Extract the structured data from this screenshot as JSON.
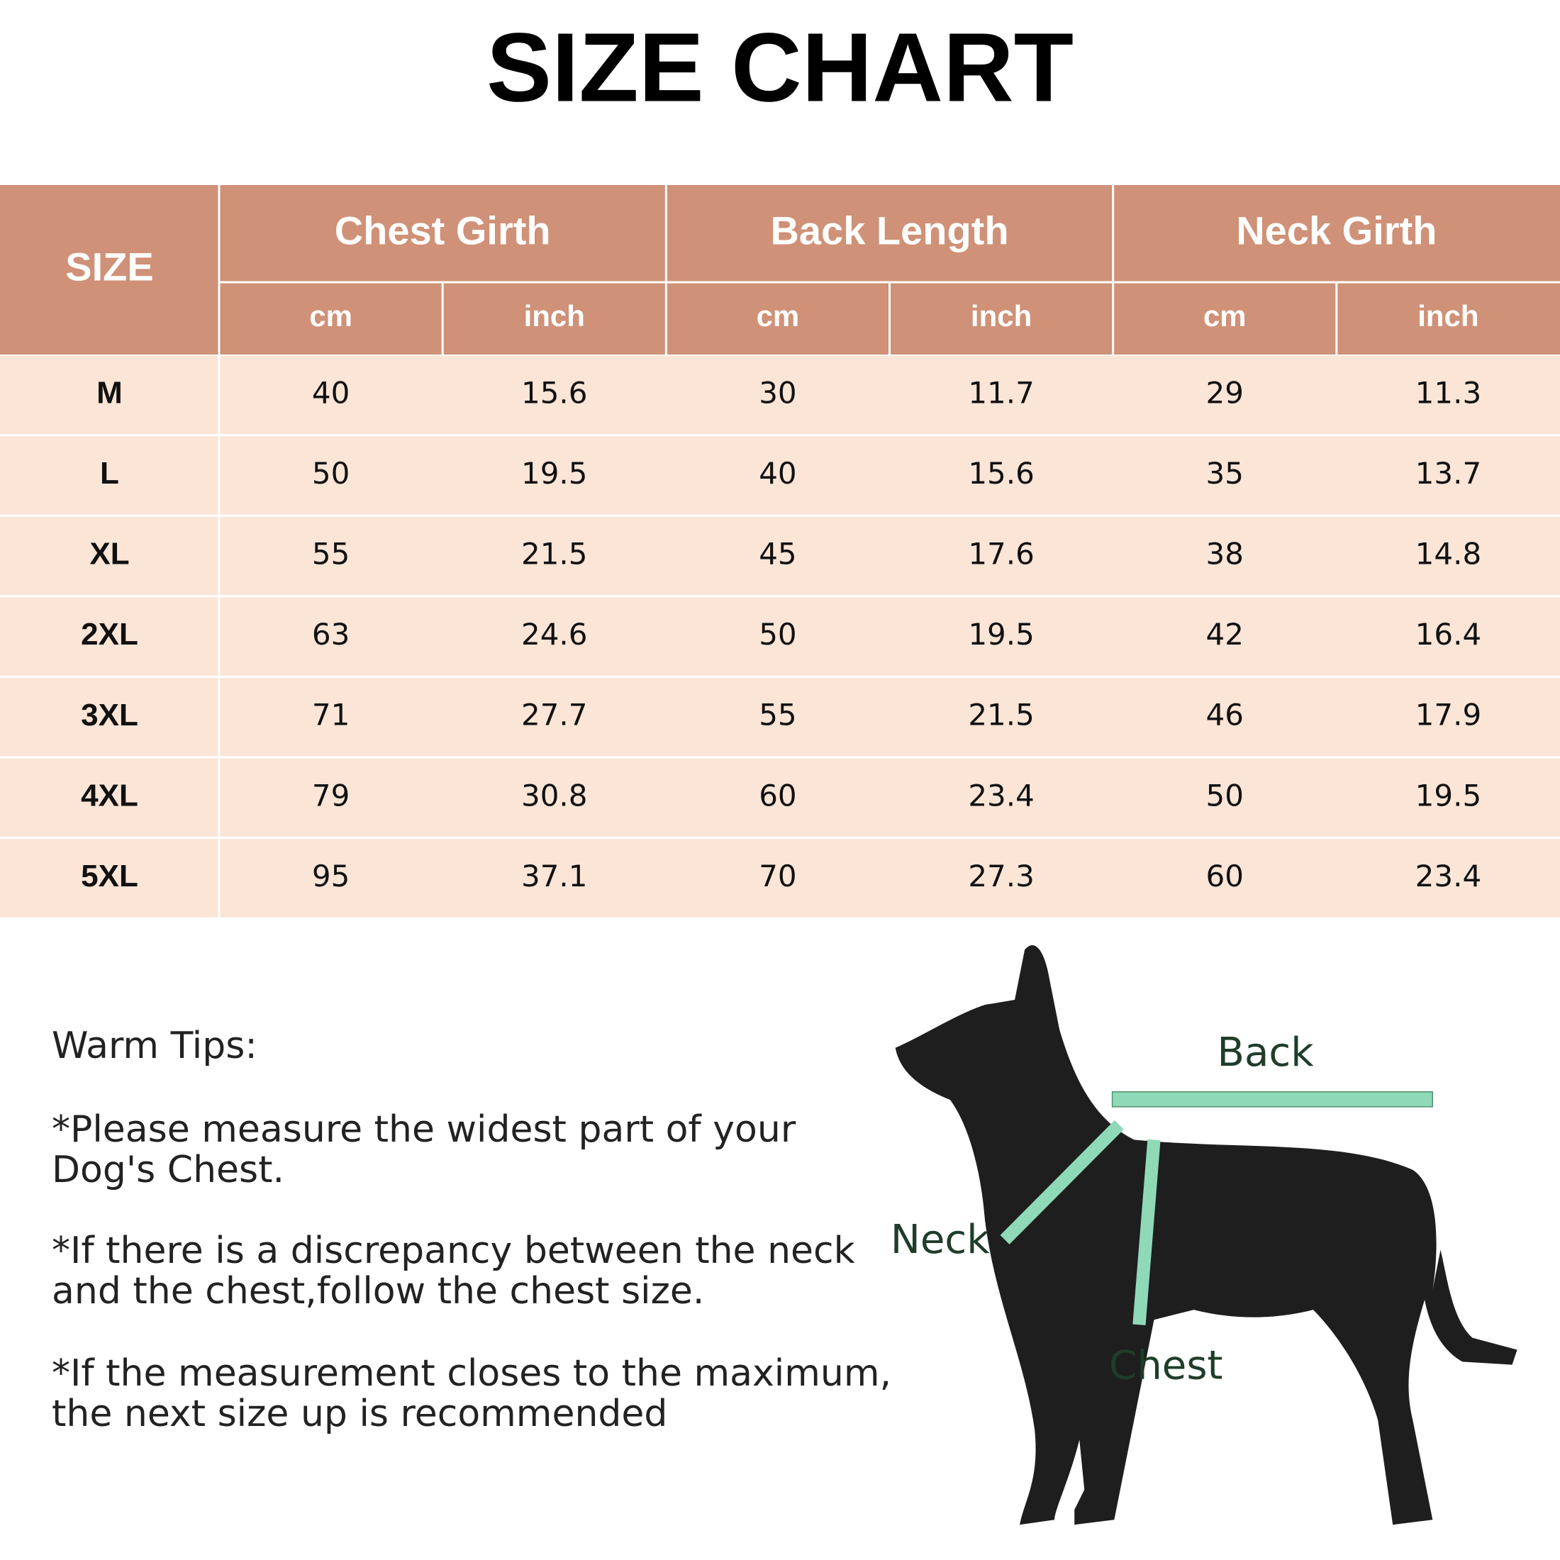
{
  "title": "SIZE CHART",
  "table": {
    "size_header": "SIZE",
    "groups": [
      "Chest Girth",
      "Back Length",
      "Neck Girth"
    ],
    "units": [
      "cm",
      "inch",
      "cm",
      "inch",
      "cm",
      "inch"
    ],
    "rows": [
      [
        "M",
        "40",
        "15.6",
        "30",
        "11.7",
        "29",
        "11.3"
      ],
      [
        "L",
        "50",
        "19.5",
        "40",
        "15.6",
        "35",
        "13.7"
      ],
      [
        "XL",
        "55",
        "21.5",
        "45",
        "17.6",
        "38",
        "14.8"
      ],
      [
        "2XL",
        "63",
        "24.6",
        "50",
        "19.5",
        "42",
        "16.4"
      ],
      [
        "3XL",
        "71",
        "27.7",
        "55",
        "21.5",
        "46",
        "17.9"
      ],
      [
        "4XL",
        "79",
        "30.8",
        "60",
        "23.4",
        "50",
        "19.5"
      ],
      [
        "5XL",
        "95",
        "37.1",
        "70",
        "27.3",
        "60",
        "23.4"
      ]
    ]
  },
  "tips": {
    "heading": "Warm Tips:",
    "items": [
      [
        "*Please measure the widest part of your",
        "Dog's Chest."
      ],
      [
        "*If there is a discrepancy between the neck",
        "and the chest,follow the chest size."
      ],
      [
        "*If the measurement closes to the maximum,",
        "the next size up is recommended"
      ]
    ]
  },
  "diagram": {
    "back": "Back",
    "neck": "Neck",
    "chest": "Chest"
  }
}
